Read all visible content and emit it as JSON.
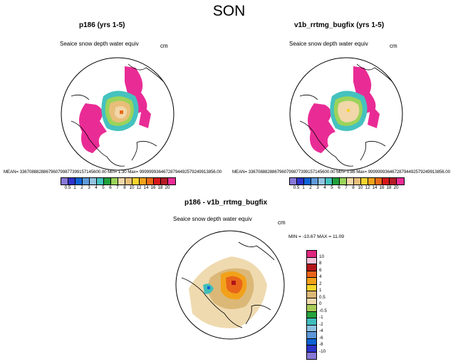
{
  "figure_title": "SON",
  "chart_data": [
    {
      "type": "heatmap",
      "title": "p186 (yrs 1-5)",
      "variable": "Seaice snow depth water equiv",
      "units": "cm",
      "stats_text": "MEAN= 3367088828867960799877399157145600.00   Min=    1.30  Max= 99999993646728794492579249913856.00",
      "colorbar": {
        "orientation": "horizontal",
        "levels": [
          "0.5",
          "1",
          "2",
          "3",
          "4",
          "5",
          "6",
          "7",
          "8",
          "10",
          "12",
          "14",
          "16",
          "18",
          "20"
        ],
        "colors": [
          "#8878d8",
          "#2f33c9",
          "#0d63d6",
          "#5f9ad9",
          "#92c3e0",
          "#45c2bf",
          "#21a03c",
          "#9bd35a",
          "#f1d7a9",
          "#e8be7a",
          "#f7d32e",
          "#f0a21a",
          "#ea6a18",
          "#d7181b",
          "#b51d25",
          "#e92c95"
        ]
      }
    },
    {
      "type": "heatmap",
      "title": "v1b_rrtmg_bugfix (yrs 1-5)",
      "variable": "Seaice snow depth water equiv",
      "units": "cm",
      "stats_text": "MEAN= 3367088828867960799877399157145600.00   Min=    0.86  Max= 99999993646728794492579249913856.00",
      "colorbar": {
        "orientation": "horizontal",
        "levels": [
          "0.5",
          "1",
          "2",
          "3",
          "4",
          "5",
          "6",
          "7",
          "8",
          "10",
          "12",
          "14",
          "16",
          "18",
          "20"
        ],
        "colors": [
          "#8878d8",
          "#2f33c9",
          "#0d63d6",
          "#5f9ad9",
          "#92c3e0",
          "#45c2bf",
          "#21a03c",
          "#9bd35a",
          "#f1d7a9",
          "#e8be7a",
          "#f7d32e",
          "#f0a21a",
          "#ea6a18",
          "#d7181b",
          "#b51d25",
          "#e92c95"
        ]
      }
    },
    {
      "type": "heatmap",
      "title": "p186 - v1b_rrtmg_bugfix",
      "variable": "Seaice snow depth water equiv",
      "units": "cm",
      "stats_text": "MIN = -10.67  MAX =  11.09",
      "min": -10.67,
      "max": 11.09,
      "colorbar": {
        "orientation": "vertical",
        "levels": [
          "10",
          "8",
          "6",
          "4",
          "2",
          "1",
          "0.5",
          "0",
          "-0.5",
          "-1",
          "-2",
          "-4",
          "-6",
          "-8",
          "-10"
        ],
        "colors": [
          "#e0277f",
          "#f4c4dc",
          "#b2151a",
          "#e8651a",
          "#f2a11a",
          "#f7d62a",
          "#dbb877",
          "#efdab0",
          "#a8cc57",
          "#26a23c",
          "#40bebb",
          "#8ec2e0",
          "#5d97d8",
          "#0e61d4",
          "#2c33c8",
          "#8777d7"
        ]
      }
    }
  ]
}
